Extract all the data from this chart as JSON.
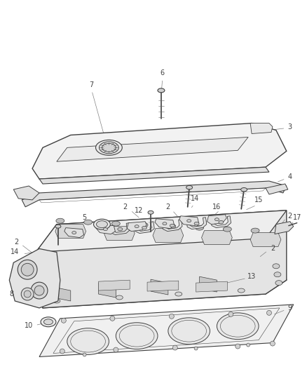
{
  "background_color": "#ffffff",
  "line_color": "#404040",
  "label_color": "#404040",
  "leader_color": "#808080",
  "fig_width": 4.39,
  "fig_height": 5.33,
  "dpi": 100
}
